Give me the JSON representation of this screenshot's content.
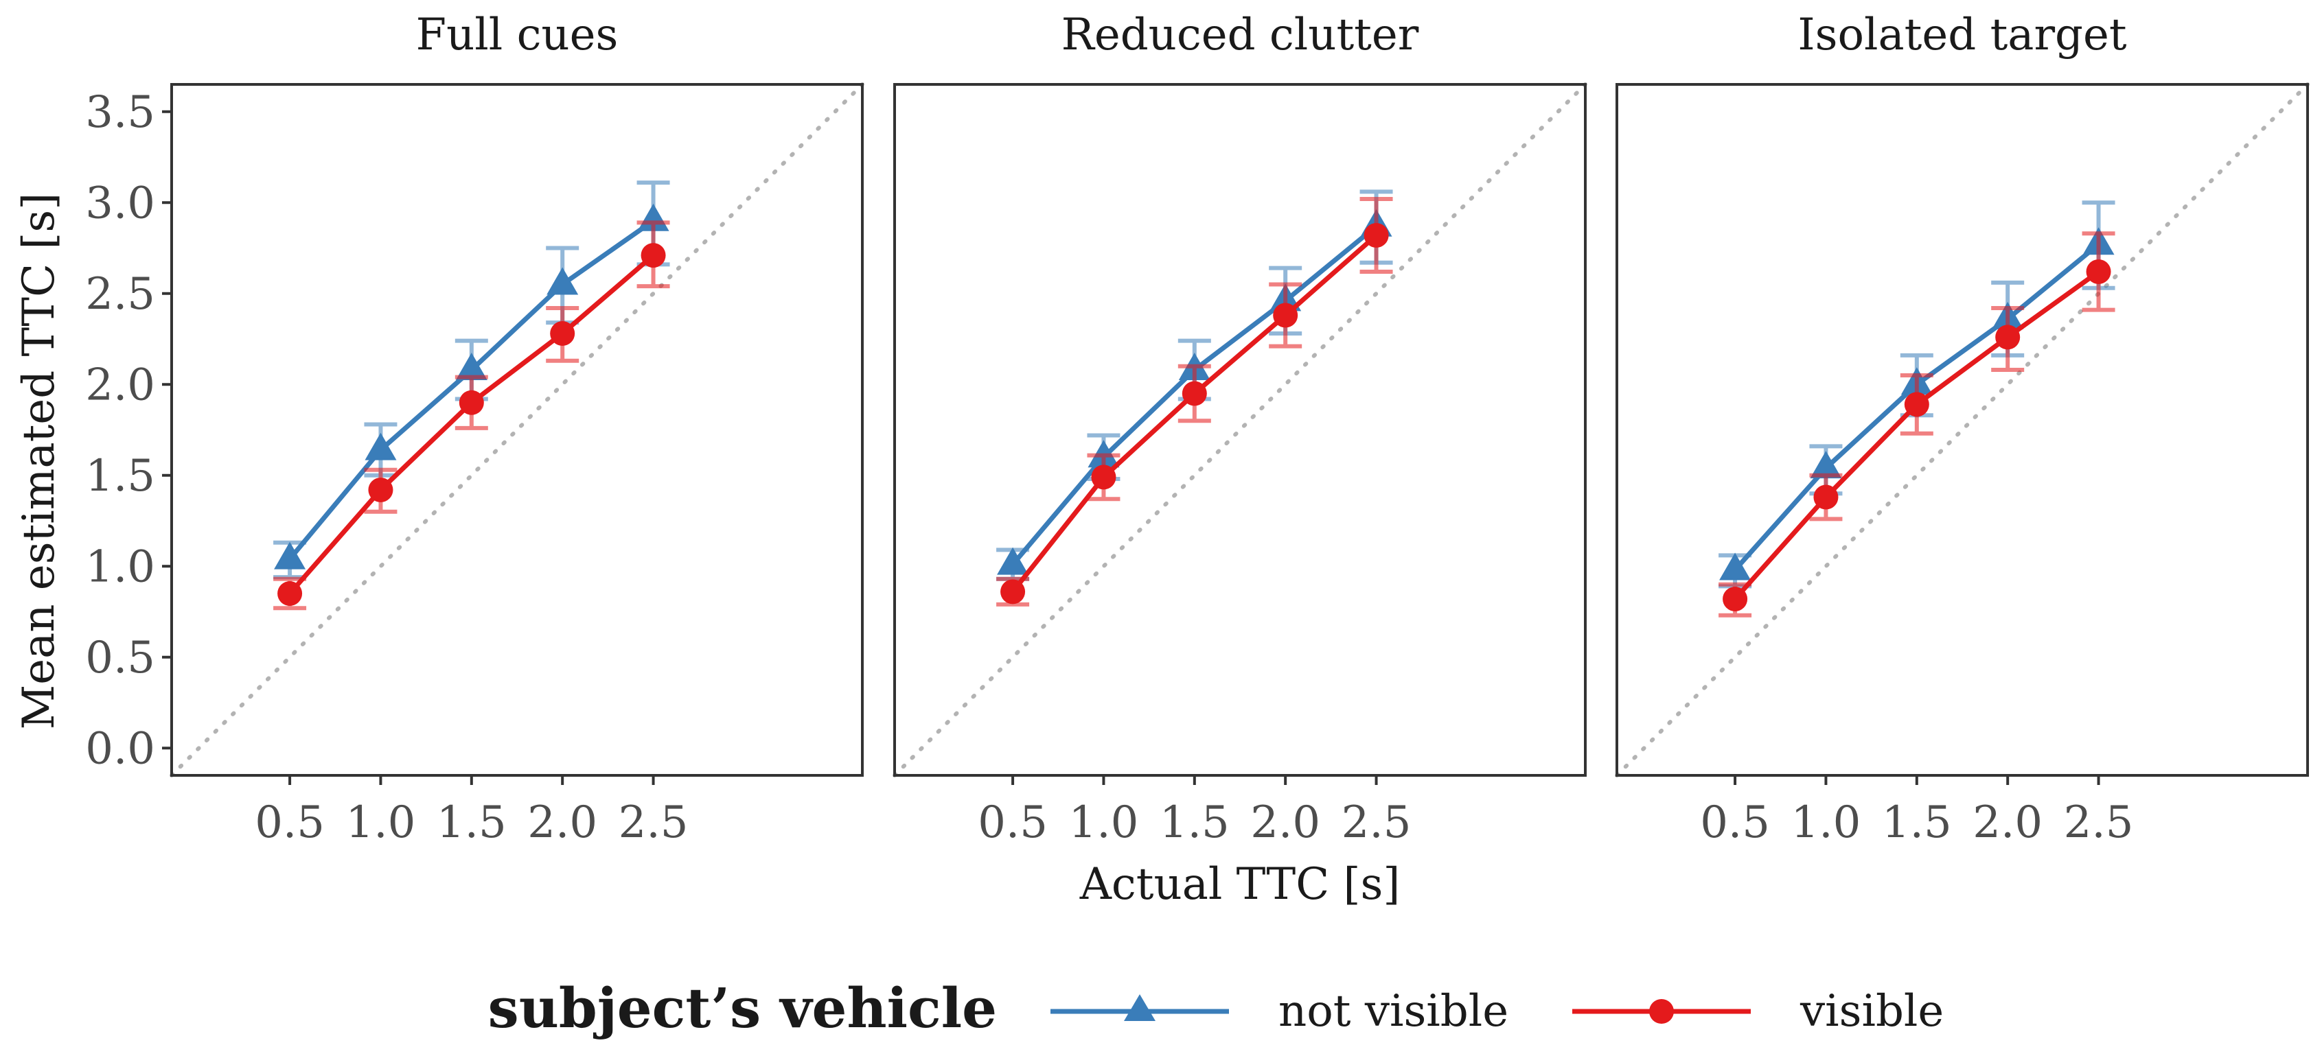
{
  "chart_data": {
    "type": "line",
    "x_label": "Actual TTC [s]",
    "y_label": "Mean estimated TTC [s]",
    "x_ticks": [
      "0.5",
      "1.0",
      "1.5",
      "2.0",
      "2.5"
    ],
    "y_ticks": [
      "0.0",
      "0.5",
      "1.0",
      "1.5",
      "2.0",
      "2.5",
      "3.0",
      "3.5"
    ],
    "xlim": [
      -0.15,
      3.65
    ],
    "ylim": [
      -0.15,
      3.65
    ],
    "reference_line": "identity (dotted)",
    "legend": {
      "title": "subject’s vehicle",
      "position": "bottom",
      "entries": [
        {
          "name": "not visible",
          "marker": "triangle",
          "color": "#3A7DB9"
        },
        {
          "name": "visible",
          "marker": "circle",
          "color": "#E41A1C"
        }
      ]
    },
    "panels": [
      {
        "title": "Full cues",
        "series": [
          {
            "name": "not visible",
            "x": [
              0.5,
              1.0,
              1.5,
              2.0,
              2.5
            ],
            "y": [
              1.04,
              1.64,
              2.08,
              2.55,
              2.9
            ],
            "err_low": [
              0.94,
              1.5,
              1.92,
              2.34,
              2.66
            ],
            "err_high": [
              1.13,
              1.78,
              2.24,
              2.75,
              3.11
            ]
          },
          {
            "name": "visible",
            "x": [
              0.5,
              1.0,
              1.5,
              2.0,
              2.5
            ],
            "y": [
              0.85,
              1.42,
              1.9,
              2.28,
              2.71
            ],
            "err_low": [
              0.77,
              1.3,
              1.76,
              2.13,
              2.54
            ],
            "err_high": [
              0.93,
              1.53,
              2.04,
              2.42,
              2.89
            ]
          }
        ]
      },
      {
        "title": "Reduced clutter",
        "series": [
          {
            "name": "not visible",
            "x": [
              0.5,
              1.0,
              1.5,
              2.0,
              2.5
            ],
            "y": [
              1.01,
              1.6,
              2.08,
              2.46,
              2.87
            ],
            "err_low": [
              0.93,
              1.48,
              1.92,
              2.28,
              2.67
            ],
            "err_high": [
              1.09,
              1.72,
              2.24,
              2.64,
              3.06
            ]
          },
          {
            "name": "visible",
            "x": [
              0.5,
              1.0,
              1.5,
              2.0,
              2.5
            ],
            "y": [
              0.86,
              1.49,
              1.95,
              2.38,
              2.82
            ],
            "err_low": [
              0.79,
              1.37,
              1.8,
              2.21,
              2.62
            ],
            "err_high": [
              0.93,
              1.61,
              2.1,
              2.55,
              3.02
            ]
          }
        ]
      },
      {
        "title": "Isolated target",
        "series": [
          {
            "name": "not visible",
            "x": [
              0.5,
              1.0,
              1.5,
              2.0,
              2.5
            ],
            "y": [
              0.98,
              1.54,
              2.0,
              2.36,
              2.77
            ],
            "err_low": [
              0.89,
              1.4,
              1.83,
              2.16,
              2.53
            ],
            "err_high": [
              1.06,
              1.66,
              2.16,
              2.56,
              3.0
            ]
          },
          {
            "name": "visible",
            "x": [
              0.5,
              1.0,
              1.5,
              2.0,
              2.5
            ],
            "y": [
              0.82,
              1.38,
              1.89,
              2.26,
              2.62
            ],
            "err_low": [
              0.73,
              1.26,
              1.73,
              2.08,
              2.41
            ],
            "err_high": [
              0.9,
              1.5,
              2.05,
              2.42,
              2.83
            ]
          }
        ]
      }
    ]
  }
}
